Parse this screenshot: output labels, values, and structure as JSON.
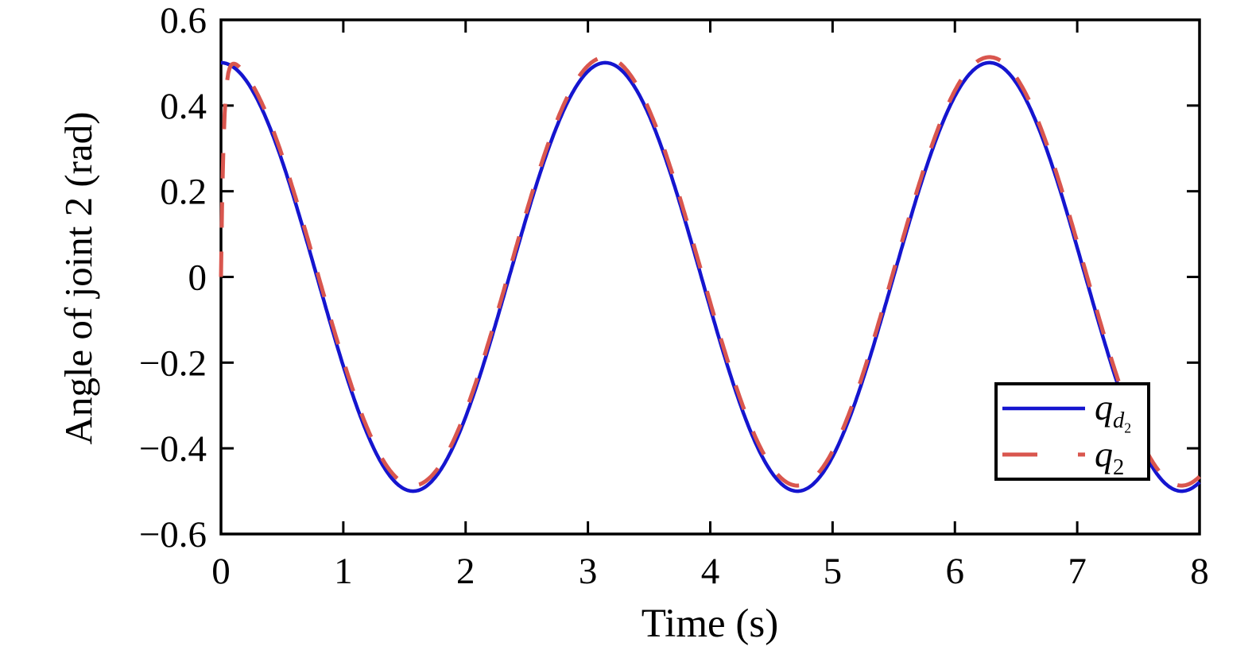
{
  "figure_background": "#ffffff",
  "axes_color": "#000000",
  "chart_data": {
    "type": "line",
    "title": "",
    "xlabel": "Time (s)",
    "ylabel": "Angle of joint 2 (rad)",
    "xlim": [
      0,
      8
    ],
    "ylim": [
      -0.6,
      0.6
    ],
    "xticks": [
      0,
      1,
      2,
      3,
      4,
      5,
      6,
      7,
      8
    ],
    "xtick_labels": [
      "0",
      "1",
      "2",
      "3",
      "4",
      "5",
      "6",
      "7",
      "8"
    ],
    "yticks": [
      0.6,
      0.4,
      0.2,
      0,
      -0.2,
      -0.4,
      -0.6
    ],
    "ytick_labels": [
      "0.6",
      "0.4",
      "0.2",
      "0",
      "−0.2",
      "−0.4",
      "−0.6"
    ],
    "grid": false,
    "box": true,
    "tick_direction": "in",
    "legend_position": "lower-right-inside",
    "sample_dt": 0.01,
    "series": [
      {
        "name": "qd2",
        "description": "desired joint-2 trajectory",
        "color": "#1515cf",
        "style": "solid",
        "line_width": 4.5,
        "dash": null,
        "model": {
          "formula": "0.5*cos(2*t)",
          "amplitude": 0.5,
          "omega": 2,
          "phase": 0,
          "offset": 0,
          "transient_amplitude": 0,
          "transient_tau": 1
        },
        "keypoints": {
          "start": [
            0,
            0.5
          ],
          "maxima_t": [
            0,
            3.1416,
            6.2832
          ],
          "max_value": 0.5,
          "minima_t": [
            1.5708,
            4.7124,
            7.854
          ],
          "min_value": -0.5,
          "end": [
            8,
            -0.479
          ]
        }
      },
      {
        "name": "q2",
        "description": "actual joint-2 angle, starts at 0 with fast transient then tracks desired slightly above",
        "color": "#d9564e",
        "style": "dashed",
        "line_width": 5,
        "dash": [
          32,
          30
        ],
        "model": {
          "formula": "0.5*cos(2*t) + 0.013 - 0.513*exp(-t/0.022)",
          "amplitude": 0.5,
          "omega": 2,
          "phase": 0,
          "offset": 0.013,
          "transient_amplitude": -0.513,
          "transient_tau": 0.022
        },
        "keypoints": {
          "start": [
            0,
            0
          ],
          "transient_rise_to": [
            0.06,
            0.45
          ],
          "steady_state_offset_above_desired": 0.013
        }
      }
    ]
  },
  "legend": {
    "border_color": "#000000",
    "background": "#ffffff",
    "items": [
      {
        "series": "qd2",
        "label_plain": "qd2",
        "parts": [
          {
            "t": "q",
            "italic": true,
            "level": 0
          },
          {
            "t": "d",
            "italic": true,
            "level": 1
          },
          {
            "t": "2",
            "italic": false,
            "level": 2
          }
        ],
        "sample": {
          "color": "#1515cf",
          "width": 4.5,
          "dash": null,
          "length": 104
        }
      },
      {
        "series": "q2",
        "label_plain": "q2",
        "parts": [
          {
            "t": "q",
            "italic": true,
            "level": 0
          },
          {
            "t": "2",
            "italic": false,
            "level": 1
          }
        ],
        "sample": {
          "color": "#d9564e",
          "width": 5,
          "dash": [
            44,
            51
          ],
          "length": 104
        }
      }
    ]
  }
}
